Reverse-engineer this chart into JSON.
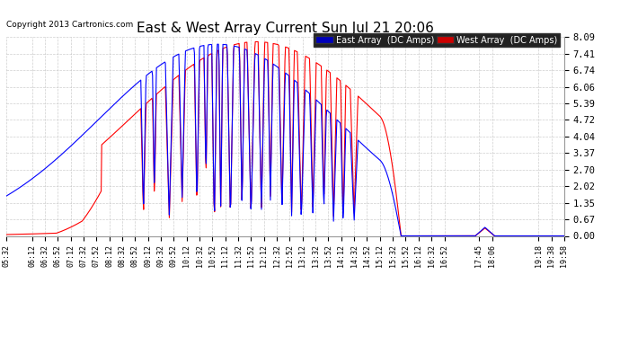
{
  "title": "East & West Array Current Sun Jul 21 20:06",
  "copyright": "Copyright 2013 Cartronics.com",
  "legend_east": "East Array  (DC Amps)",
  "legend_west": "West Array  (DC Amps)",
  "east_color": "#0000FF",
  "west_color": "#FF0000",
  "legend_east_bg": "#0000BB",
  "legend_west_bg": "#CC0000",
  "background_color": "#FFFFFF",
  "grid_color": "#BBBBBB",
  "ylim": [
    0.0,
    8.09
  ],
  "yticks": [
    0.0,
    0.67,
    1.35,
    2.02,
    2.7,
    3.37,
    4.04,
    4.72,
    5.39,
    6.06,
    6.74,
    7.41,
    8.09
  ],
  "x_labels": [
    "05:32",
    "06:12",
    "06:32",
    "06:52",
    "07:12",
    "07:32",
    "07:52",
    "08:12",
    "08:32",
    "08:52",
    "09:12",
    "09:32",
    "09:52",
    "10:12",
    "10:32",
    "10:52",
    "11:12",
    "11:32",
    "11:52",
    "12:12",
    "12:32",
    "12:52",
    "13:12",
    "13:32",
    "13:52",
    "14:12",
    "14:32",
    "14:52",
    "15:12",
    "15:32",
    "15:52",
    "16:12",
    "16:32",
    "16:52",
    "17:45",
    "18:06",
    "19:18",
    "19:38",
    "19:58"
  ]
}
